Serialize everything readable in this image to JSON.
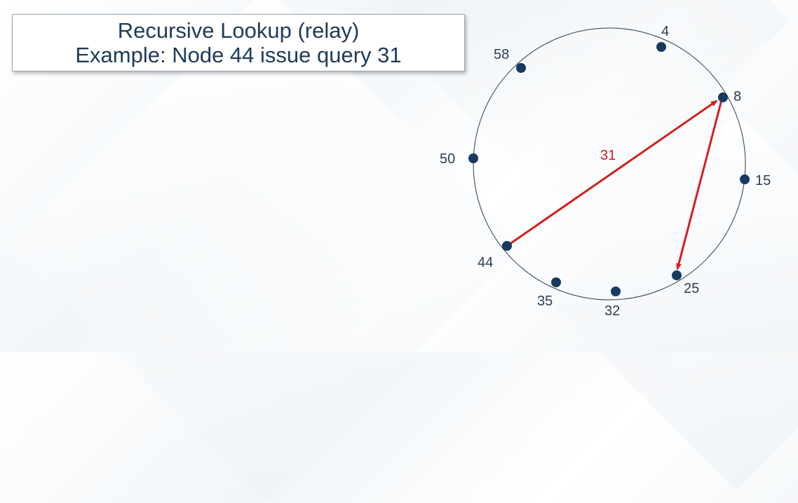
{
  "title": {
    "line1": "Recursive Lookup (relay)",
    "line2": "Example: Node 44 issue query 31"
  },
  "nodes": [
    {
      "id": "4",
      "label": "4"
    },
    {
      "id": "8",
      "label": "8"
    },
    {
      "id": "15",
      "label": "15"
    },
    {
      "id": "25",
      "label": "25"
    },
    {
      "id": "32",
      "label": "32"
    },
    {
      "id": "35",
      "label": "35"
    },
    {
      "id": "44",
      "label": "44"
    },
    {
      "id": "50",
      "label": "50"
    },
    {
      "id": "58",
      "label": "58"
    }
  ],
  "query": {
    "label": "31",
    "path": [
      "44",
      "8",
      "25"
    ]
  },
  "colors": {
    "node": "#173a5e",
    "ring": "#2b3e52",
    "arrow": "#d41f1f",
    "title_text": "#1f3b57"
  }
}
